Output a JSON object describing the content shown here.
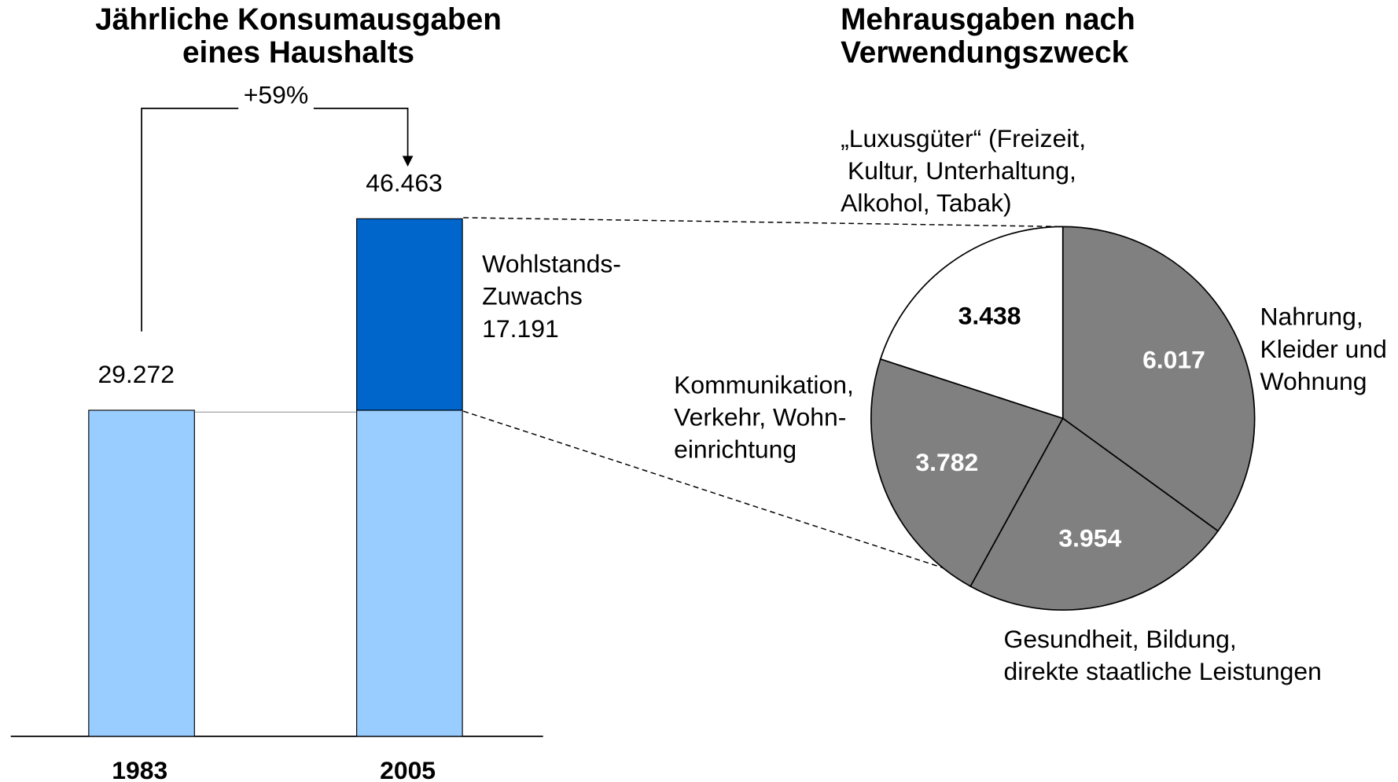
{
  "chart_data": [
    {
      "type": "bar",
      "title": "Jährliche Konsumausgaben\neines Haushalts",
      "categories": [
        "1983",
        "2005"
      ],
      "series": [
        {
          "color": "#99ccff",
          "values": [
            29272,
            29272
          ]
        },
        {
          "name": "Wohlstands-\nZuwachs",
          "color": "#0066cc",
          "values": [
            null,
            17191
          ],
          "value_labels": [
            null,
            "17.191"
          ]
        }
      ],
      "totals": [
        29272,
        46463
      ],
      "total_labels": [
        "29.272",
        "46.463"
      ],
      "annotation": "+59%",
      "ylim": [
        0,
        66100
      ]
    },
    {
      "type": "pie",
      "title": "Mehrausgaben nach\nVerwendungszweck",
      "categories": [
        "Nahrung,\nKleider und\nWohnung",
        "Gesundheit, Bildung,\ndirekte staatliche Leistungen",
        "Kommunikation,\nVerkehr, Wohn-\neinrichtung",
        "„Luxusgüter“ (Freizeit,\n Kultur, Unterhaltung,\nAlkohol, Tabak)"
      ],
      "values": [
        6017,
        3954,
        3782,
        3438
      ],
      "value_labels": [
        "6.017",
        "3.954",
        "3.782",
        "3.438"
      ],
      "colors": [
        "#808080",
        "#808080",
        "#808080",
        "#ffffff"
      ]
    }
  ]
}
